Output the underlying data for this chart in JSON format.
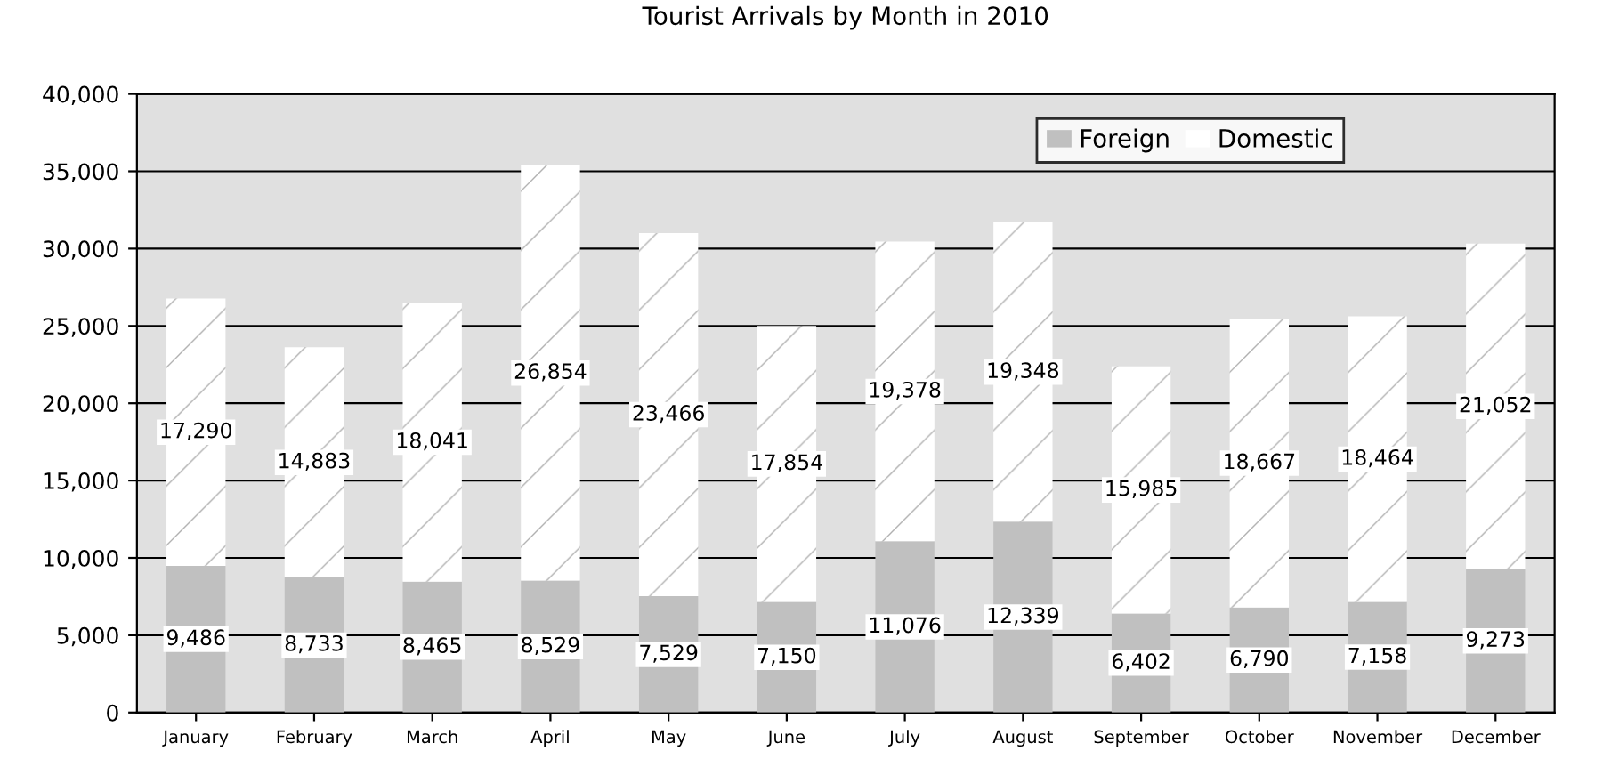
{
  "chart_data": {
    "type": "bar",
    "title": "Tourist Arrivals by Month in 2010",
    "stacked": true,
    "categories": [
      "January",
      "February",
      "March",
      "April",
      "May",
      "June",
      "July",
      "August",
      "September",
      "October",
      "November",
      "December"
    ],
    "series": [
      {
        "name": "Foreign",
        "color": "#c0c0c0",
        "values": [
          9486,
          8733,
          8465,
          8529,
          7529,
          7150,
          11076,
          12339,
          6402,
          6790,
          7158,
          9273
        ],
        "value_labels": [
          "9,486",
          "8,733",
          "8,465",
          "8,529",
          "7,529",
          "7,150",
          "11,076",
          "12,339",
          "6,402",
          "6,790",
          "7,158",
          "9,273"
        ]
      },
      {
        "name": "Domestic",
        "color": "#ffffff",
        "values": [
          17290,
          14883,
          18041,
          26854,
          23466,
          17854,
          19378,
          19348,
          15985,
          18667,
          18464,
          21052
        ],
        "value_labels": [
          "17,290",
          "14,883",
          "18,041",
          "26,854",
          "23,466",
          "17,854",
          "19,378",
          "19,348",
          "15,985",
          "18,667",
          "18,464",
          "21,052"
        ]
      }
    ],
    "ylim": [
      0,
      40000
    ],
    "yticks": [
      0,
      {
        "value": 5000,
        "label": "5,000"
      },
      {
        "value": 10000,
        "label": "10,000"
      },
      {
        "value": 15000,
        "label": "15,000"
      },
      {
        "value": 20000,
        "label": "20,000"
      },
      {
        "value": 25000,
        "label": "25,000"
      },
      {
        "value": 30000,
        "label": "30,000"
      },
      {
        "value": 35000,
        "label": "35,000"
      },
      {
        "value": 40000,
        "label": "40,000"
      }
    ],
    "grid": "y",
    "legend": "top right"
  }
}
